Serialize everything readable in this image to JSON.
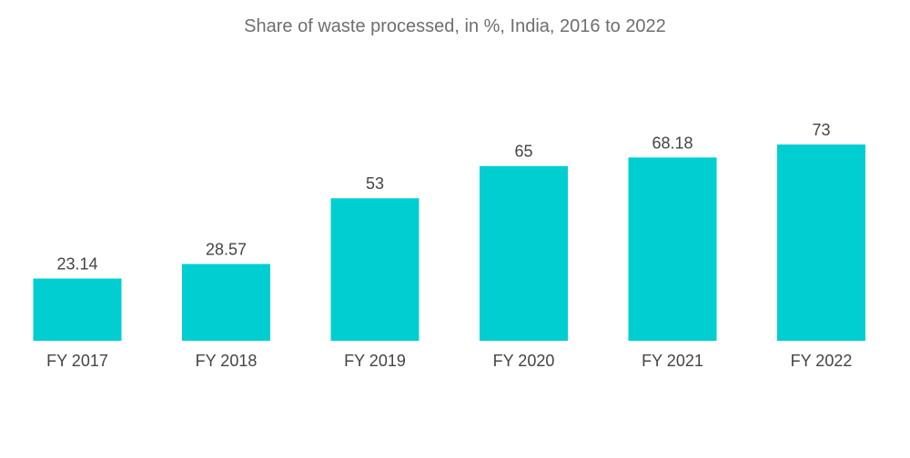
{
  "chart_data": {
    "type": "bar",
    "title": "Share of waste processed, in %, India,  2016 to 2022",
    "categories": [
      "FY 2017",
      "FY 2018",
      "FY 2019",
      "FY 2020",
      "FY 2021",
      "FY 2022"
    ],
    "values": [
      23.14,
      28.57,
      53,
      65,
      68.18,
      73
    ],
    "value_labels": [
      "23.14",
      "28.57",
      "53",
      "65",
      "68.18",
      "73"
    ],
    "xlabel": "",
    "ylabel": "",
    "ylim": [
      0,
      73
    ],
    "grid": false,
    "legend": "none",
    "bar_color": "#00ced1"
  }
}
